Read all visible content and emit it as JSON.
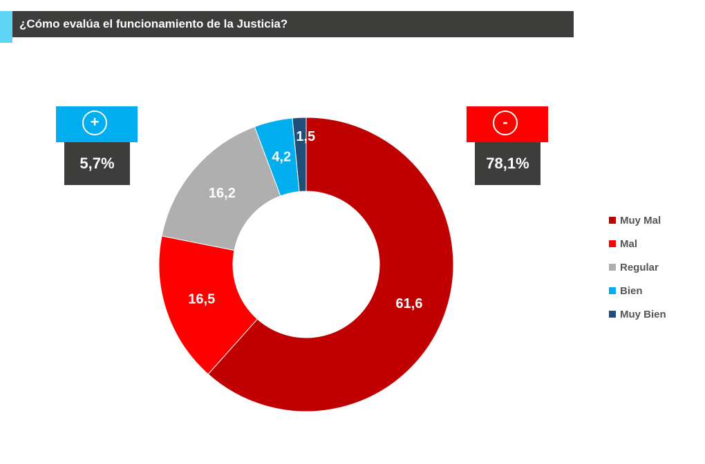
{
  "title": "¿Cómo evalúa el funcionamiento de la Justicia?",
  "badges": {
    "positive": {
      "icon": "plus-circle-icon",
      "symbol": "+",
      "value": "5,7%",
      "color": "#00aeef"
    },
    "negative": {
      "icon": "minus-circle-icon",
      "symbol": "-",
      "value": "78,1%",
      "color": "#ff0000"
    }
  },
  "chart_data": {
    "type": "pie",
    "donut": true,
    "title": "¿Cómo evalúa el funcionamiento de la Justicia?",
    "categories": [
      "Muy Mal",
      "Mal",
      "Regular",
      "Bien",
      "Muy Bien"
    ],
    "values": [
      61.6,
      16.5,
      16.2,
      4.2,
      1.5
    ],
    "labels": [
      "61,6",
      "16,5",
      "16,2",
      "4,2",
      "1,5"
    ],
    "colors": [
      "#c00000",
      "#ff0000",
      "#afafaf",
      "#00aeef",
      "#1f4e79"
    ],
    "legend_position": "right"
  }
}
